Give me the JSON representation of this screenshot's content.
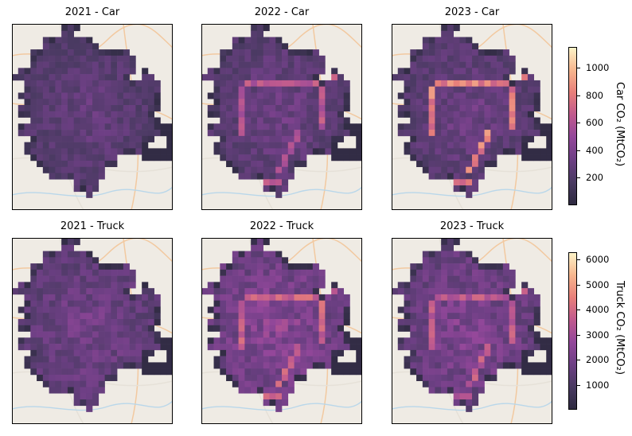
{
  "chart_data": [
    {
      "type": "heatmap",
      "title": "2021 - Car",
      "row": "Car",
      "year": "2021",
      "colorbar_label": "Car CO₂ (MtCO₂)",
      "colormap": "magma",
      "clim": [
        0,
        1150
      ],
      "base_level": 300,
      "corridor_level": 0,
      "colorbar_ticks": [
        200,
        400,
        600,
        800,
        1000
      ]
    },
    {
      "type": "heatmap",
      "title": "2022 - Car",
      "row": "Car",
      "year": "2022",
      "colorbar_label": "Car CO₂ (MtCO₂)",
      "colormap": "magma",
      "clim": [
        0,
        1150
      ],
      "base_level": 330,
      "corridor_level": 620,
      "colorbar_ticks": [
        200,
        400,
        600,
        800,
        1000
      ]
    },
    {
      "type": "heatmap",
      "title": "2023 - Car",
      "row": "Car",
      "year": "2023",
      "colorbar_label": "Car CO₂ (MtCO₂)",
      "colormap": "magma",
      "clim": [
        0,
        1150
      ],
      "base_level": 330,
      "corridor_level": 800,
      "colorbar_ticks": [
        200,
        400,
        600,
        800,
        1000
      ]
    },
    {
      "type": "heatmap",
      "title": "2021 - Truck",
      "row": "Truck",
      "year": "2021",
      "colorbar_label": "Truck CO₂ (MtCO₂)",
      "colormap": "magma",
      "clim": [
        0,
        6300
      ],
      "base_level": 2000,
      "corridor_level": 0,
      "colorbar_ticks": [
        1000,
        2000,
        3000,
        4000,
        5000,
        6000
      ]
    },
    {
      "type": "heatmap",
      "title": "2022 - Truck",
      "row": "Truck",
      "year": "2022",
      "colorbar_label": "Truck CO₂ (MtCO₂)",
      "colormap": "magma",
      "clim": [
        0,
        6300
      ],
      "base_level": 2500,
      "corridor_level": 3800,
      "colorbar_ticks": [
        1000,
        2000,
        3000,
        4000,
        5000,
        6000
      ]
    },
    {
      "type": "heatmap",
      "title": "2023 - Truck",
      "row": "Truck",
      "year": "2023",
      "colorbar_label": "Truck CO₂ (MtCO₂)",
      "colormap": "magma",
      "clim": [
        0,
        6300
      ],
      "base_level": 2300,
      "corridor_level": 3500,
      "colorbar_ticks": [
        1000,
        2000,
        3000,
        4000,
        5000,
        6000
      ]
    }
  ],
  "colorbars": [
    {
      "label": "Car CO₂ (MtCO₂)",
      "ticks": [
        "200",
        "400",
        "600",
        "800",
        "1000"
      ],
      "min": 0,
      "max": 1150
    },
    {
      "label": "Truck CO₂ (MtCO₂)",
      "ticks": [
        "1000",
        "2000",
        "3000",
        "4000",
        "5000",
        "6000"
      ],
      "min": 0,
      "max": 6300
    }
  ],
  "colors": {
    "map_background": "#efebe4",
    "map_water": "#b9d7ea",
    "map_road_major": "#f2c9a0",
    "map_road_minor": "#e6e1d8",
    "no_data": "#ffffff",
    "magma_stops": [
      "#2e2a40",
      "#4a3a62",
      "#6d3f84",
      "#93479a",
      "#c05a8e",
      "#e87f7a",
      "#f7b68e",
      "#fdf3c7"
    ]
  }
}
